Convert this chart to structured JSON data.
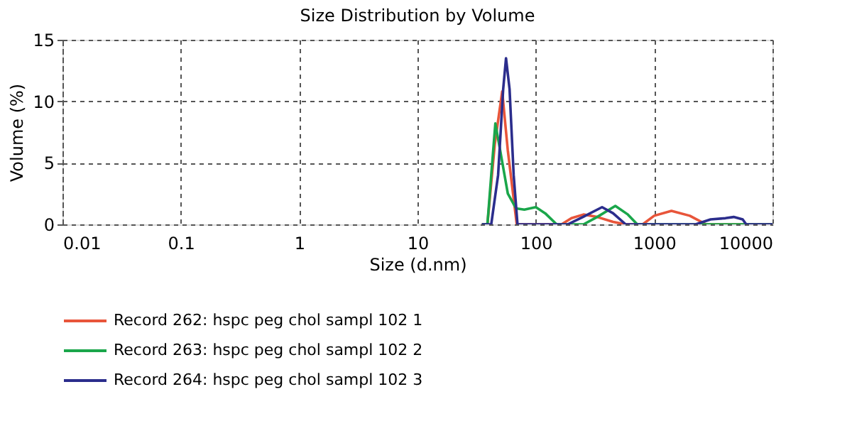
{
  "chart_data": {
    "type": "line",
    "title": "Size Distribution by Volume",
    "xlabel": "Size (d.nm)",
    "ylabel": "Volume (%)",
    "log": "x",
    "xlim": [
      0.01,
      10000
    ],
    "xticks": [
      0.01,
      0.1,
      1,
      10,
      100,
      1000,
      10000
    ],
    "ylim": [
      0,
      15
    ],
    "yticks": [
      0,
      5,
      10,
      15
    ],
    "grid": true,
    "legend": "bottom",
    "marker": "none",
    "line_style": "solid",
    "series": [
      {
        "name": "Record 262: hspc peg chol sampl 102 1",
        "color": "#e8553a",
        "x": [
          35,
          39,
          45,
          52,
          58,
          69,
          165,
          200,
          253,
          330,
          450,
          575,
          800,
          1000,
          1400,
          2000,
          2750,
          10000
        ],
        "values": [
          0,
          0,
          6.5,
          10.8,
          6,
          0,
          0,
          0.5,
          0.8,
          0.6,
          0.2,
          0,
          0,
          0.7,
          1.1,
          0.7,
          0,
          0
        ]
      },
      {
        "name": "Record 263: hspc peg chol sampl 102 2",
        "color": "#1aa64a",
        "x": [
          35,
          39,
          42,
          45.5,
          50,
          58,
          68,
          80,
          100,
          120,
          150,
          253,
          330,
          470,
          600,
          720,
          10000
        ],
        "values": [
          0,
          0,
          4,
          8.2,
          6,
          2.5,
          1.3,
          1.2,
          1.4,
          0.9,
          0,
          0,
          0.6,
          1.5,
          0.8,
          0,
          0
        ]
      },
      {
        "name": "Record 264: hspc peg chol sampl 102 3",
        "color": "#2b2d8c",
        "x": [
          35,
          42,
          48,
          53,
          56,
          60,
          65,
          70,
          186,
          250,
          363,
          450,
          575,
          2240,
          3000,
          4000,
          4700,
          5600,
          6000,
          10000
        ],
        "values": [
          0,
          0,
          4,
          11,
          13.5,
          11,
          4,
          0,
          0,
          0.6,
          1.4,
          0.9,
          0,
          0,
          0.4,
          0.5,
          0.6,
          0.4,
          0,
          0
        ]
      }
    ]
  }
}
